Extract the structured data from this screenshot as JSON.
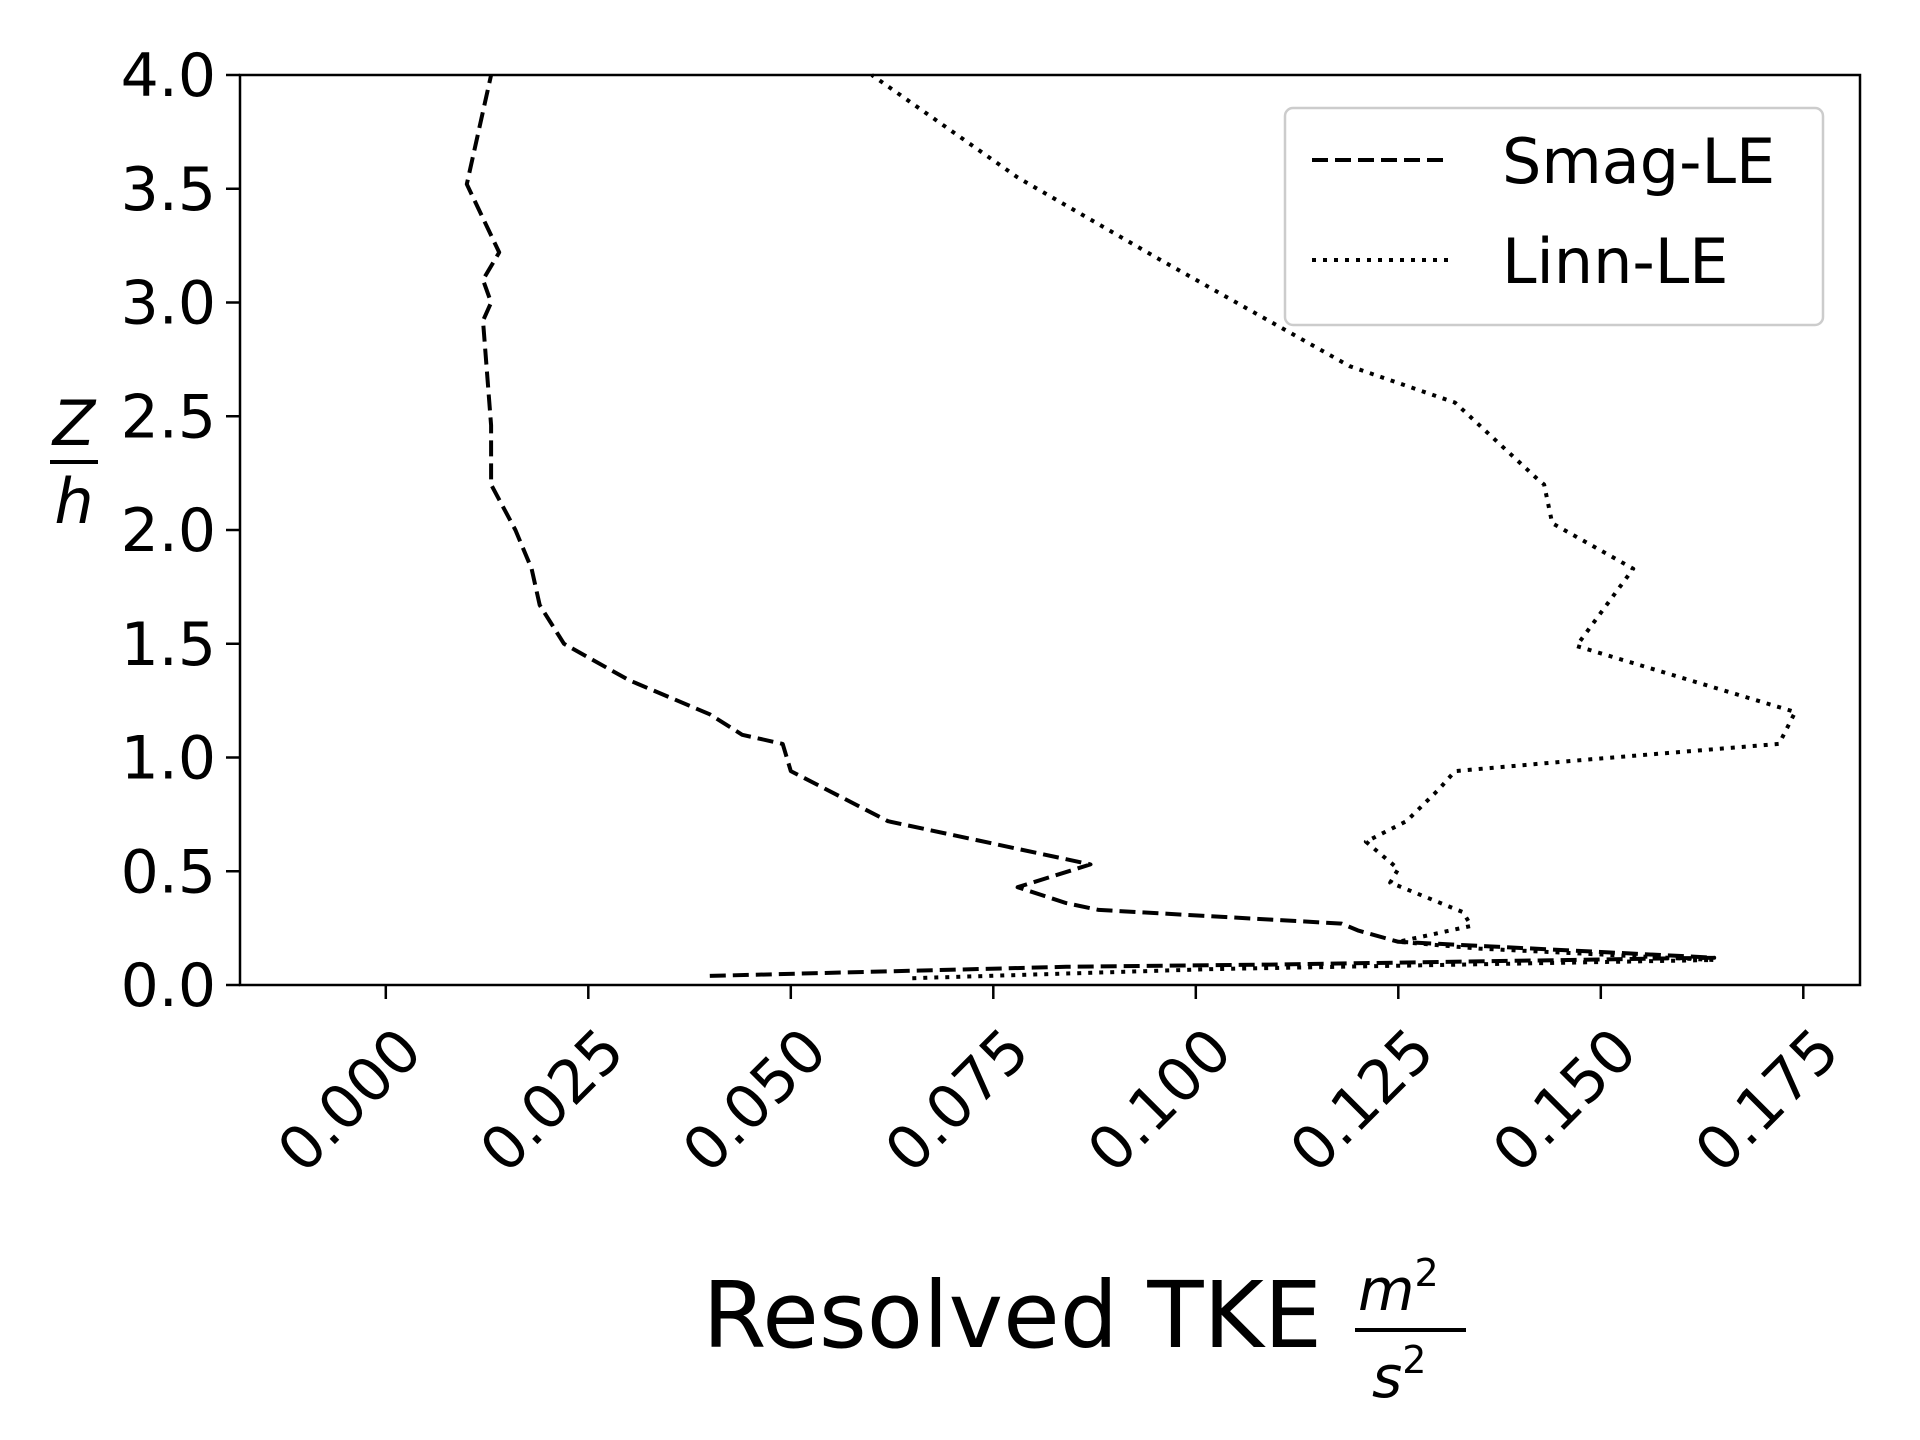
{
  "chart_data": {
    "type": "line",
    "title": "",
    "xlabel": "Resolved TKE",
    "xlabel_unit_numerator": "m",
    "xlabel_unit_numerator_exp": "2",
    "xlabel_unit_denominator": "s",
    "xlabel_unit_denominator_exp": "2",
    "ylabel_numerator": "Z",
    "ylabel_denominator": "h",
    "xlim": [
      -0.018,
      0.182
    ],
    "ylim": [
      0,
      4
    ],
    "xticks": [
      0,
      0.025,
      0.05,
      0.075,
      0.1,
      0.125,
      0.15,
      0.175
    ],
    "xtick_labels": [
      "0.000",
      "0.025",
      "0.050",
      "0.075",
      "0.100",
      "0.125",
      "0.150",
      "0.175"
    ],
    "yticks": [
      0,
      0.5,
      1,
      1.5,
      2,
      2.5,
      3,
      3.5,
      4
    ],
    "ytick_labels": [
      "0.0",
      "0.5",
      "1.0",
      "1.5",
      "2.0",
      "2.5",
      "3.0",
      "3.5",
      "4.0"
    ],
    "grid": false,
    "legend_position": "top-right",
    "series": [
      {
        "name": "Smag-LE",
        "style": "dashed",
        "color": "#000000",
        "x": [
          0.04,
          0.084,
          0.11,
          0.164,
          0.125,
          0.12,
          0.118,
          0.088,
          0.084,
          0.078,
          0.087,
          0.062,
          0.05,
          0.049,
          0.044,
          0.04,
          0.03,
          0.022,
          0.019,
          0.018,
          0.016,
          0.013,
          0.013,
          0.012,
          0.013,
          0.012,
          0.014,
          0.01,
          0.013
        ],
        "y": [
          0.04,
          0.08,
          0.09,
          0.12,
          0.19,
          0.24,
          0.27,
          0.33,
          0.36,
          0.43,
          0.53,
          0.72,
          0.94,
          1.06,
          1.1,
          1.19,
          1.34,
          1.5,
          1.67,
          1.83,
          2.0,
          2.2,
          2.46,
          2.92,
          3.0,
          3.1,
          3.22,
          3.52,
          4.0
        ]
      },
      {
        "name": "Linn-LE",
        "style": "dotted",
        "color": "#000000",
        "x": [
          0.065,
          0.102,
          0.164,
          0.135,
          0.125,
          0.134,
          0.133,
          0.124,
          0.125,
          0.121,
          0.126,
          0.13,
          0.132,
          0.148,
          0.172,
          0.174,
          0.147,
          0.154,
          0.144,
          0.143,
          0.142,
          0.132,
          0.119,
          0.105,
          0.095,
          0.078,
          0.06
        ],
        "y": [
          0.03,
          0.07,
          0.11,
          0.16,
          0.19,
          0.26,
          0.32,
          0.45,
          0.51,
          0.63,
          0.72,
          0.86,
          0.94,
          0.99,
          1.06,
          1.2,
          1.49,
          1.83,
          2.03,
          2.2,
          2.23,
          2.56,
          2.72,
          3.0,
          3.2,
          3.55,
          4.0
        ]
      }
    ]
  }
}
